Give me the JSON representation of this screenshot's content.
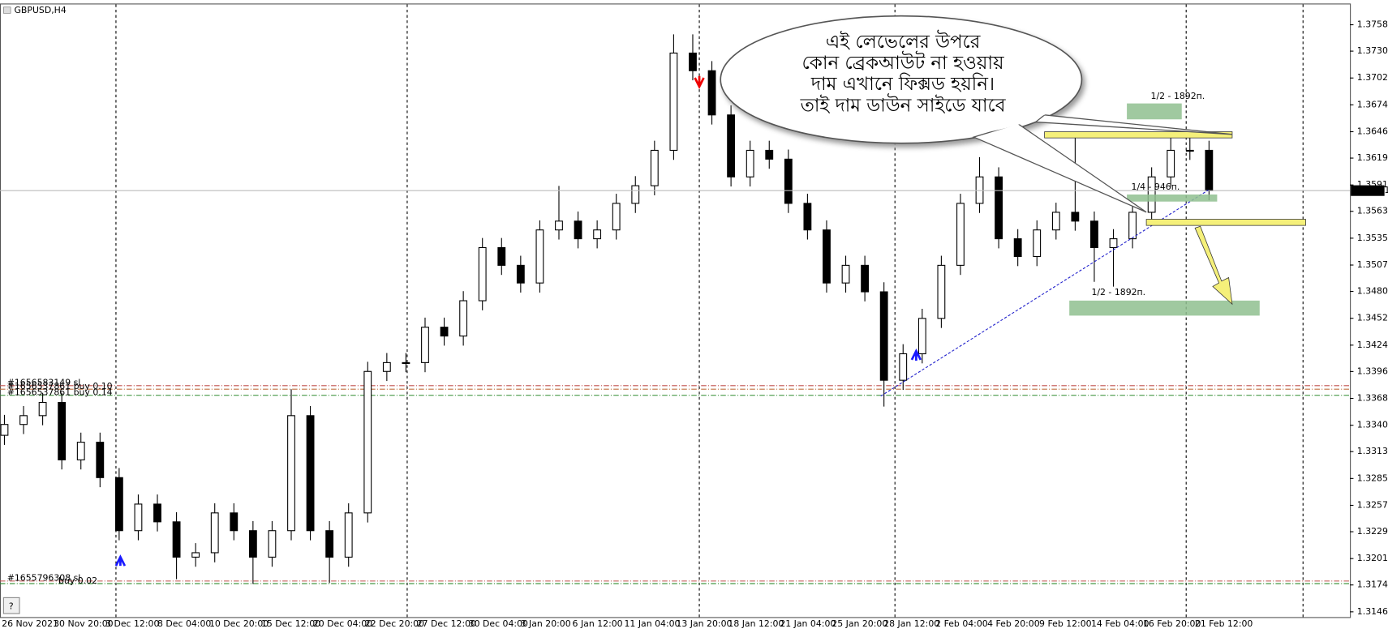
{
  "chart_data": {
    "type": "candlestick",
    "title": "GBPUSD,H4",
    "ylim": [
      1.31405,
      1.37792
    ],
    "yticks": [
      {
        "value": 1.3758,
        "label": "1.37580"
      },
      {
        "value": 1.37305,
        "label": "1.37305"
      },
      {
        "value": 1.37025,
        "label": "1.37025"
      },
      {
        "value": 1.36745,
        "label": "1.36745"
      },
      {
        "value": 1.36465,
        "label": "1.36465"
      },
      {
        "value": 1.3619,
        "label": "1.36190"
      },
      {
        "value": 1.3591,
        "label": "1.35910"
      },
      {
        "value": 1.35635,
        "label": "1.35635"
      },
      {
        "value": 1.35355,
        "label": "1.35355"
      },
      {
        "value": 1.35075,
        "label": "1.35075"
      },
      {
        "value": 1.348,
        "label": "1.34800"
      },
      {
        "value": 1.3452,
        "label": "1.34520"
      },
      {
        "value": 1.3424,
        "label": "1.34240"
      },
      {
        "value": 1.33965,
        "label": "1.33965"
      },
      {
        "value": 1.33685,
        "label": "1.33685"
      },
      {
        "value": 1.33405,
        "label": "1.33405"
      },
      {
        "value": 1.3313,
        "label": "1.33130"
      },
      {
        "value": 1.3285,
        "label": "1.32850"
      },
      {
        "value": 1.3257,
        "label": "1.32570"
      },
      {
        "value": 1.32295,
        "label": "1.32295"
      },
      {
        "value": 1.32015,
        "label": "1.32015"
      },
      {
        "value": 1.3174,
        "label": "1.31740"
      },
      {
        "value": 1.3146,
        "label": "1.31460"
      }
    ],
    "x_labels": [
      "26 Nov 2021",
      "30 Nov 20:00",
      "3 Dec 12:00",
      "8 Dec 04:00",
      "10 Dec 20:00",
      "15 Dec 12:00",
      "20 Dec 04:00",
      "22 Dec 20:00",
      "27 Dec 12:00",
      "30 Dec 04:00",
      "3 Jan 20:00",
      "6 Jan 12:00",
      "11 Jan 04:00",
      "13 Jan 20:00",
      "18 Jan 12:00",
      "21 Jan 04:00",
      "25 Jan 20:00",
      "28 Jan 12:00",
      "2 Feb 04:00",
      "4 Feb 20:00",
      "9 Feb 12:00",
      "14 Feb 04:00",
      "16 Feb 20:00",
      "21 Feb 12:00"
    ],
    "open": [
      1.333,
      1.33413,
      1.33505,
      1.33643,
      1.33044,
      1.33228,
      1.32859,
      1.32306,
      1.32583,
      1.32398,
      1.3203,
      1.32076,
      1.32491,
      1.32306,
      1.3203,
      1.32306,
      1.33505,
      1.32306,
      1.3203,
      1.32491,
      1.33966,
      1.34058,
      1.34058,
      1.34427,
      1.34335,
      1.34703,
      1.35257,
      1.35072,
      1.34888,
      1.35441,
      1.35533,
      1.35349,
      1.35441,
      1.35718,
      1.35902,
      1.36271,
      1.37285,
      1.37101,
      1.3664,
      1.35994,
      1.36271,
      1.36179,
      1.35718,
      1.35441,
      1.34888,
      1.35072,
      1.34796,
      1.33874,
      1.3415,
      1.34519,
      1.35072,
      1.35718,
      1.35994,
      1.35349,
      1.35164,
      1.35441,
      1.35625,
      1.35533,
      1.35257,
      1.35349,
      1.35625,
      1.35994,
      1.36271,
      1.36271
    ],
    "high": [
      1.33513,
      1.33605,
      1.33743,
      1.33743,
      1.33328,
      1.33328,
      1.32959,
      1.32683,
      1.32683,
      1.32498,
      1.32176,
      1.32591,
      1.32591,
      1.32406,
      1.32406,
      1.3378,
      1.33605,
      1.32406,
      1.32591,
      1.34066,
      1.34158,
      1.34158,
      1.34527,
      1.34527,
      1.34803,
      1.35357,
      1.35357,
      1.35172,
      1.35541,
      1.359,
      1.35633,
      1.35541,
      1.35818,
      1.36002,
      1.36371,
      1.3748,
      1.3748,
      1.37201,
      1.3674,
      1.36371,
      1.36371,
      1.36279,
      1.35818,
      1.35541,
      1.35172,
      1.35172,
      1.34896,
      1.3425,
      1.34619,
      1.35172,
      1.35818,
      1.362,
      1.36094,
      1.35449,
      1.35541,
      1.35725,
      1.364,
      1.35633,
      1.35449,
      1.35725,
      1.36094,
      1.3645,
      1.3645,
      1.36371
    ],
    "low": [
      1.332,
      1.33313,
      1.33405,
      1.32944,
      1.32944,
      1.32759,
      1.32206,
      1.32206,
      1.32298,
      1.318,
      1.3193,
      1.31976,
      1.32206,
      1.3175,
      1.3193,
      1.32206,
      1.32206,
      1.3176,
      1.3193,
      1.32391,
      1.33866,
      1.33958,
      1.33958,
      1.34235,
      1.34235,
      1.34603,
      1.34972,
      1.34788,
      1.34788,
      1.35341,
      1.35249,
      1.35249,
      1.35341,
      1.35618,
      1.35802,
      1.36171,
      1.37001,
      1.3654,
      1.35894,
      1.35894,
      1.36079,
      1.35618,
      1.35341,
      1.34788,
      1.34788,
      1.34696,
      1.336,
      1.33774,
      1.3405,
      1.34419,
      1.34972,
      1.35618,
      1.35249,
      1.35064,
      1.35064,
      1.35341,
      1.35433,
      1.349,
      1.3485,
      1.35249,
      1.35525,
      1.35894,
      1.36171,
      1.35751
    ],
    "close": [
      1.33413,
      1.33505,
      1.33643,
      1.33044,
      1.33228,
      1.32859,
      1.32306,
      1.32583,
      1.32398,
      1.3203,
      1.32076,
      1.32491,
      1.32306,
      1.3203,
      1.32306,
      1.33505,
      1.32306,
      1.3203,
      1.32491,
      1.33966,
      1.34058,
      1.34058,
      1.34427,
      1.34335,
      1.34703,
      1.35257,
      1.35072,
      1.34888,
      1.35441,
      1.35533,
      1.35349,
      1.35441,
      1.35718,
      1.35902,
      1.36271,
      1.37285,
      1.37101,
      1.3664,
      1.35994,
      1.36271,
      1.36179,
      1.35718,
      1.35441,
      1.34888,
      1.35072,
      1.34796,
      1.33874,
      1.3415,
      1.34519,
      1.35072,
      1.35718,
      1.35994,
      1.35349,
      1.35164,
      1.35441,
      1.35625,
      1.35533,
      1.35257,
      1.35349,
      1.35625,
      1.35994,
      1.36271,
      1.36271,
      1.35851
    ],
    "last_price": 1.35851,
    "order_lines": [
      {
        "price": 1.33818,
        "label": "#1656583149 sl",
        "color": "#c0504d"
      },
      {
        "price": 1.33781,
        "label": "#1656537861 buy 0.10",
        "color": "#c07040"
      },
      {
        "price": 1.33717,
        "label": "#1656537861 buy 0.14",
        "color": "#2e8b2e"
      },
      {
        "price": 1.31781,
        "label": "#1655796308 sl",
        "color": "#c0504d"
      },
      {
        "price": 1.31754,
        "label": "buy 0.02",
        "color": "#2e8b2e"
      }
    ],
    "annotations": {
      "bubble": [
        "এই লেভেলের উপরে",
        "কোন ব্রেকআউট না হওয়ায়",
        "দাম এখানে ফিক্সড হয়নি।",
        "তাই দাম ডাউন সাইডে যাবে"
      ],
      "zone_top": "1/2 - 1892п.",
      "zone_mid": "1/4 - 946п.",
      "zone_bottom": "1/2 - 1892п."
    }
  }
}
